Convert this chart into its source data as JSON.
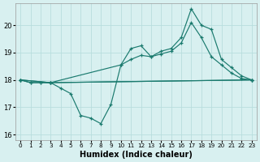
{
  "xlabel": "Humidex (Indice chaleur)",
  "background_color": "#d8f0f0",
  "grid_color": "#b8dede",
  "line_color": "#1a7a6e",
  "xlim": [
    -0.5,
    23.5
  ],
  "ylim": [
    15.8,
    20.8
  ],
  "yticks": [
    16,
    17,
    18,
    19,
    20
  ],
  "xticks": [
    0,
    1,
    2,
    3,
    4,
    5,
    6,
    7,
    8,
    9,
    10,
    11,
    12,
    13,
    14,
    15,
    16,
    17,
    18,
    19,
    20,
    21,
    22,
    23
  ],
  "series": [
    {
      "x": [
        0,
        1,
        2,
        3,
        4,
        5,
        6,
        7,
        8,
        9,
        10,
        11,
        12,
        13,
        14,
        15,
        16,
        17,
        18,
        19,
        20,
        21,
        22,
        23
      ],
      "y": [
        18.0,
        17.9,
        17.9,
        17.9,
        17.7,
        17.5,
        16.7,
        16.6,
        16.4,
        17.1,
        18.55,
        19.15,
        19.25,
        18.85,
        19.05,
        19.15,
        19.55,
        20.6,
        20.0,
        19.85,
        18.75,
        18.45,
        18.15,
        18.0
      ]
    },
    {
      "x": [
        0,
        1,
        2,
        3,
        23
      ],
      "y": [
        18.0,
        17.9,
        17.9,
        17.9,
        18.0
      ]
    },
    {
      "x": [
        0,
        3,
        10,
        11,
        12,
        13,
        14,
        15,
        16,
        17,
        18,
        19,
        20,
        21,
        22,
        23
      ],
      "y": [
        18.0,
        17.9,
        18.55,
        18.75,
        18.9,
        18.85,
        18.95,
        19.05,
        19.35,
        20.1,
        19.55,
        18.85,
        18.55,
        18.25,
        18.05,
        18.0
      ]
    },
    {
      "x": [
        0,
        3,
        23
      ],
      "y": [
        18.0,
        17.9,
        18.0
      ]
    }
  ]
}
